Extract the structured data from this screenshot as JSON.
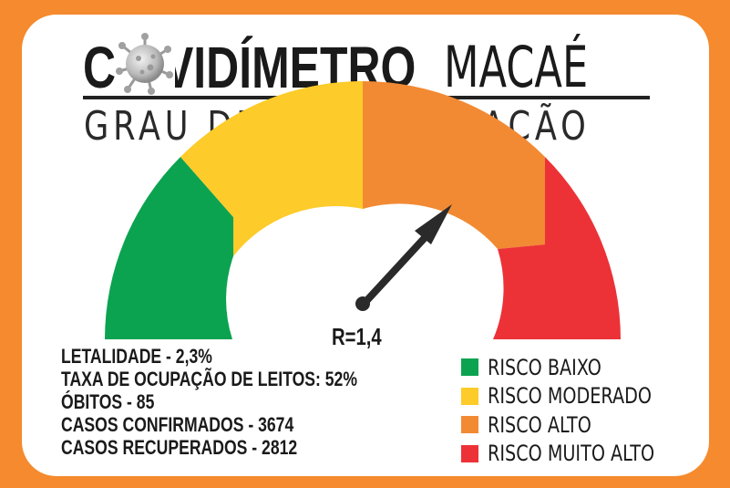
{
  "header": {
    "title_part1": "CO",
    "title_part2": "VIDÍMETRO",
    "title_part3": "MACAÉ",
    "subtitle": "GRAU DE CONTAMINAÇÃO"
  },
  "gauge": {
    "reading": "R=1,4",
    "zones": [
      {
        "name": "baixo",
        "color": "#0BA350"
      },
      {
        "name": "moderado",
        "color": "#FDCB2A"
      },
      {
        "name": "alto",
        "color": "#F28A33"
      },
      {
        "name": "muito-alto",
        "color": "#EC3237"
      }
    ]
  },
  "stats": [
    "LETALIDADE - 2,3%",
    "TAXA DE OCUPAÇÃO DE LEITOS: 52%",
    "ÓBITOS - 85",
    "CASOS CONFIRMADOS - 3674",
    "CASOS RECUPERADOS - 2812"
  ],
  "legend": [
    {
      "label": "RISCO BAIXO",
      "color": "#0BA350"
    },
    {
      "label": "RISCO MODERADO",
      "color": "#FDCB2A"
    },
    {
      "label": "RISCO ALTO",
      "color": "#F28A33"
    },
    {
      "label": "RISCO MUITO ALTO",
      "color": "#EC3237"
    }
  ],
  "colors": {
    "frame": "#F58A2E",
    "text": "#1a1a1a"
  }
}
